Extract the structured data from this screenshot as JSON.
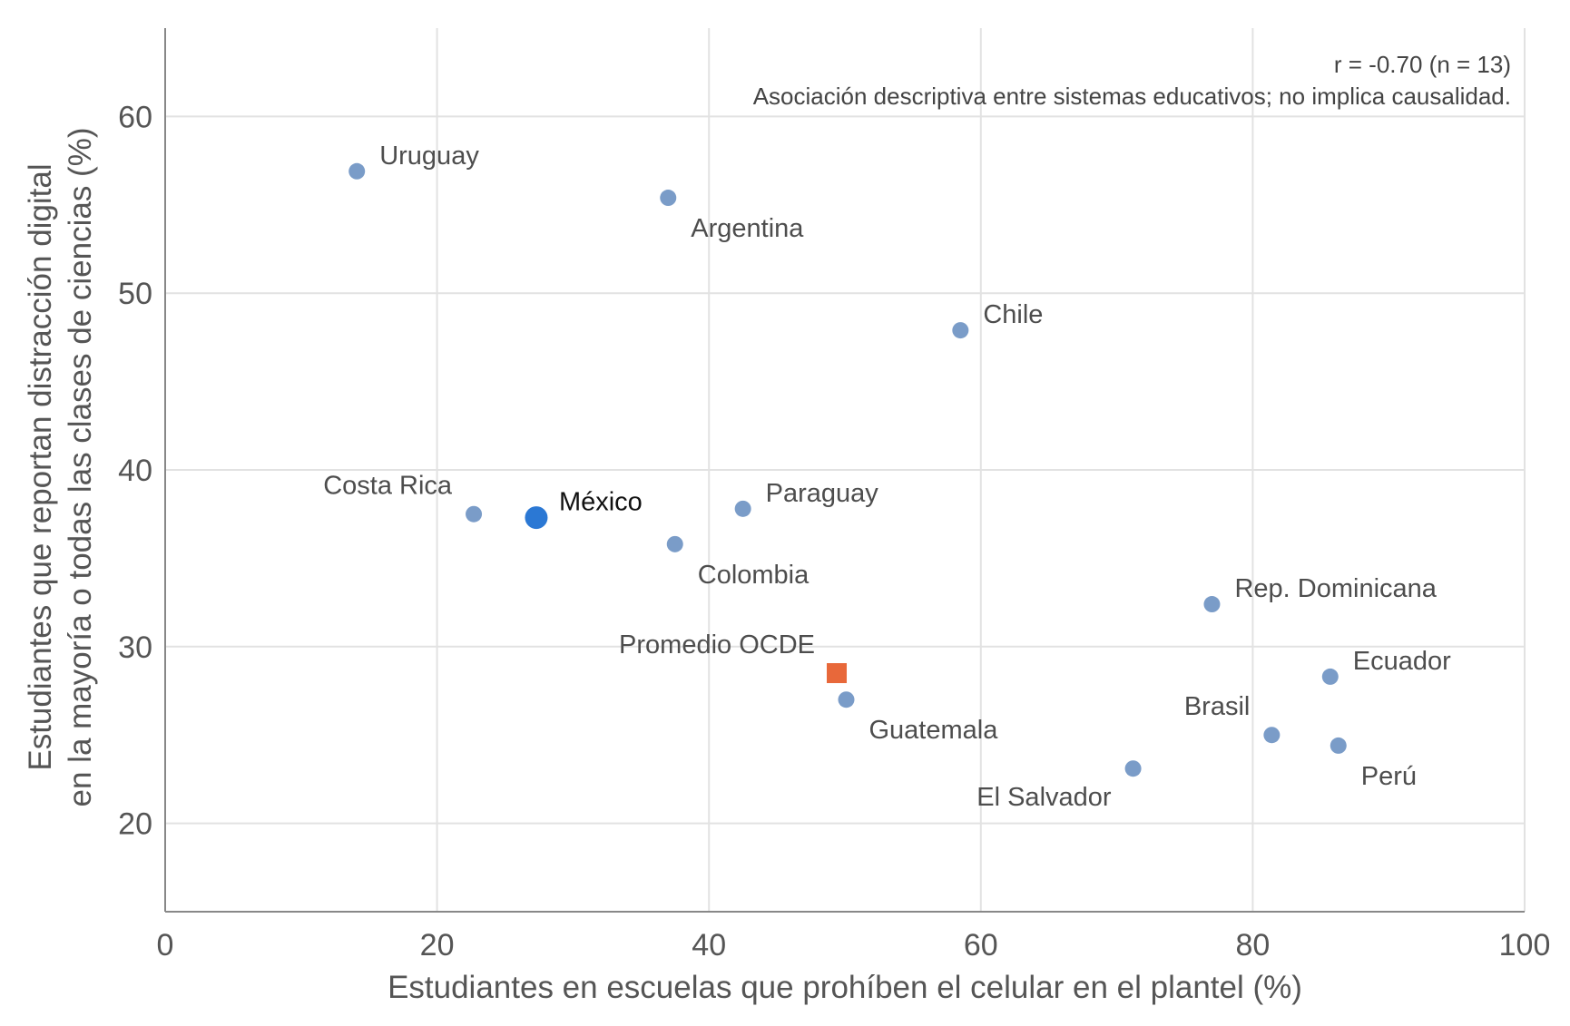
{
  "chart_data": {
    "type": "scatter",
    "xlabel": "Estudiantes en escuelas que prohíben el celular en el plantel (%)",
    "ylabel_lines": [
      "Estudiantes que reportan distracción digital",
      "en la mayoría o todas las clases de ciencias (%)"
    ],
    "xlim": [
      0,
      100
    ],
    "ylim": [
      15,
      65
    ],
    "x_ticks": [
      0,
      20,
      40,
      60,
      80,
      100
    ],
    "y_ticks": [
      20,
      30,
      40,
      50,
      60
    ],
    "grid": true,
    "annotations": [
      "r = -0.70 (n = 13)",
      "Asociación descriptiva entre sistemas educativos; no implica causalidad."
    ],
    "colors": {
      "country": "#7a9cc8",
      "highlight": "#2b78d4",
      "oecd": "#e8683a",
      "grid": "#e2e2e2",
      "axis": "#888888"
    },
    "points": [
      {
        "label": "Uruguay",
        "x": 14.1,
        "y": 56.9,
        "kind": "country",
        "label_pos": "above-right"
      },
      {
        "label": "Argentina",
        "x": 37.0,
        "y": 55.4,
        "kind": "country",
        "label_pos": "below-right"
      },
      {
        "label": "Chile",
        "x": 58.5,
        "y": 47.9,
        "kind": "country",
        "label_pos": "above-right"
      },
      {
        "label": "Costa Rica",
        "x": 22.7,
        "y": 37.5,
        "kind": "country",
        "label_pos": "above-left"
      },
      {
        "label": "México",
        "x": 27.3,
        "y": 37.3,
        "kind": "highlight",
        "label_pos": "above-right"
      },
      {
        "label": "Paraguay",
        "x": 42.5,
        "y": 37.8,
        "kind": "country",
        "label_pos": "above-right"
      },
      {
        "label": "Colombia",
        "x": 37.5,
        "y": 35.8,
        "kind": "country",
        "label_pos": "below-right"
      },
      {
        "label": "Rep. Dominicana",
        "x": 77.0,
        "y": 32.4,
        "kind": "country",
        "label_pos": "above-right"
      },
      {
        "label": "Promedio OCDE",
        "x": 49.4,
        "y": 28.5,
        "kind": "oecd",
        "label_pos": "above-left"
      },
      {
        "label": "Ecuador",
        "x": 85.7,
        "y": 28.3,
        "kind": "country",
        "label_pos": "above-right"
      },
      {
        "label": "Guatemala",
        "x": 50.1,
        "y": 27.0,
        "kind": "country",
        "label_pos": "below-right"
      },
      {
        "label": "Brasil",
        "x": 81.4,
        "y": 25.0,
        "kind": "country",
        "label_pos": "above-left"
      },
      {
        "label": "Perú",
        "x": 86.3,
        "y": 24.4,
        "kind": "country",
        "label_pos": "below-right"
      },
      {
        "label": "El Salvador",
        "x": 71.2,
        "y": 23.1,
        "kind": "country",
        "label_pos": "below-left"
      }
    ]
  }
}
